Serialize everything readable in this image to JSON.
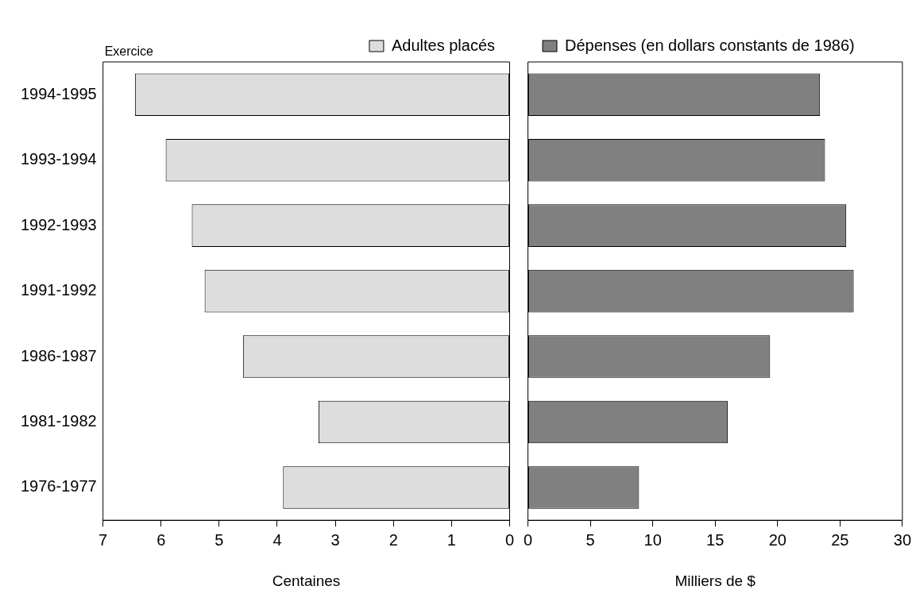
{
  "chart_data": [
    {
      "type": "bar",
      "orientation": "horizontal",
      "ylabel": "Exercice",
      "xlabel": "Centaines",
      "categories": [
        "1994-1995",
        "1993-1994",
        "1992-1993",
        "1991-1992",
        "1986-1987",
        "1981-1982",
        "1976-1977"
      ],
      "series": [
        {
          "name": "Adultes placés",
          "color": "#dddddd",
          "values": [
            6.45,
            5.92,
            5.47,
            5.25,
            4.59,
            3.29,
            3.9
          ]
        }
      ],
      "xlim": [
        7,
        0
      ],
      "xticks": [
        7,
        6,
        5,
        4,
        3,
        2,
        1,
        0
      ],
      "grid": false,
      "legend": "top"
    },
    {
      "type": "bar",
      "orientation": "horizontal",
      "xlabel": "Milliers de $",
      "categories": [
        null,
        null,
        null,
        null,
        null,
        null,
        null
      ],
      "series": [
        {
          "name": "Dépenses (en dollars constants de 1986)",
          "color": "#808080",
          "values": [
            23.4,
            23.8,
            25.5,
            26.1,
            19.4,
            16.0,
            8.9
          ]
        }
      ],
      "xlim": [
        0,
        30
      ],
      "xticks": [
        0,
        5,
        10,
        15,
        20,
        25,
        30
      ],
      "grid": false,
      "legend": "top",
      "tick_labels": "x"
    }
  ]
}
